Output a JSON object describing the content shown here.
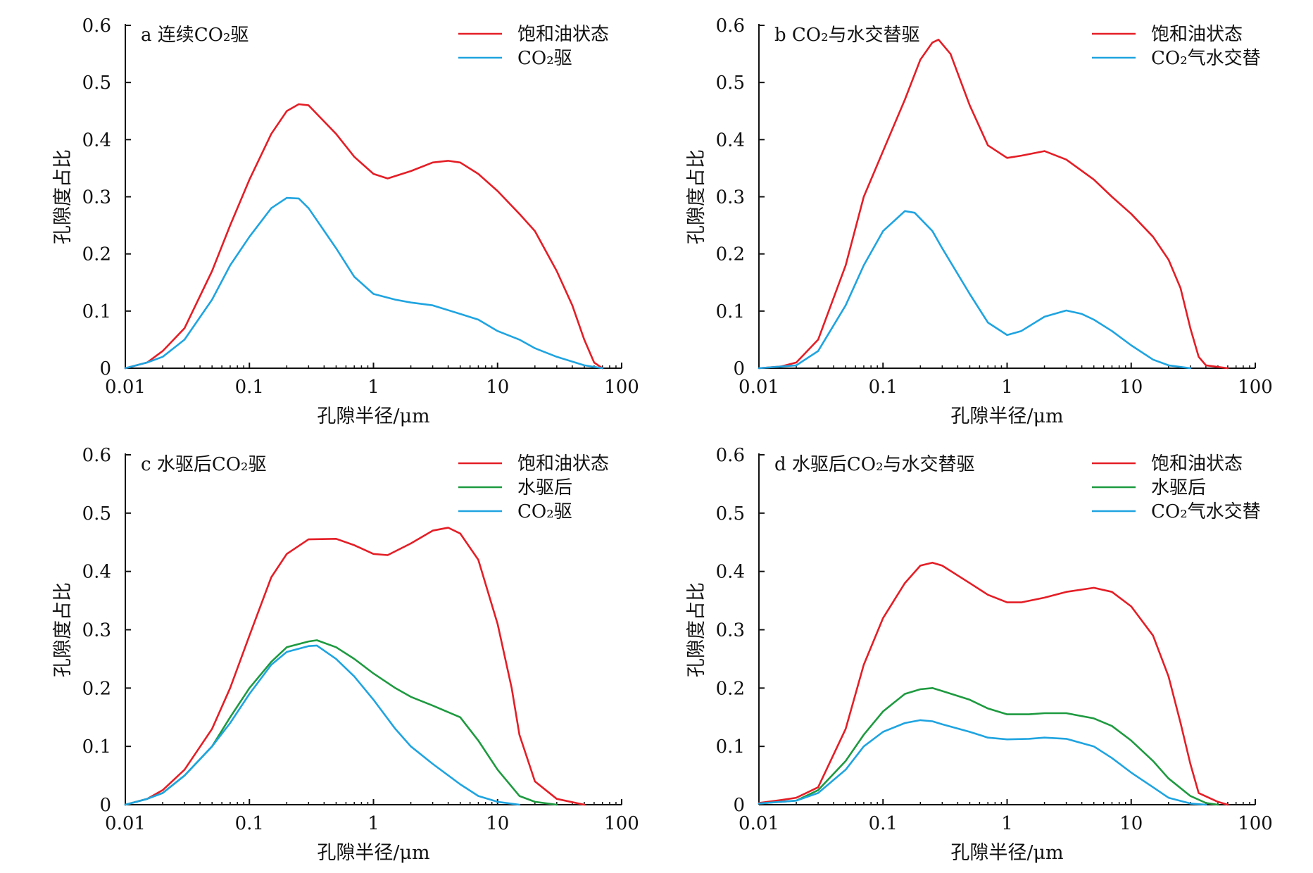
{
  "chart_data": [
    {
      "panel_label": "a 连续CO₂驱",
      "type": "line",
      "xscale": "log",
      "xlim": [
        0.01,
        100
      ],
      "ylim": [
        0,
        0.6
      ],
      "xticks": [
        "0.01",
        "0.1",
        "1",
        "10",
        "100"
      ],
      "yticks": [
        "0",
        "0.1",
        "0.2",
        "0.3",
        "0.4",
        "0.5",
        "0.6"
      ],
      "xlabel": "孔隙半径/μm",
      "ylabel": "孔隙度占比",
      "grid": false,
      "legend_position": "top-right",
      "series": [
        {
          "name": "饱和油状态",
          "color": "#e41e26",
          "points": [
            [
              0.01,
              0
            ],
            [
              0.015,
              0.01
            ],
            [
              0.02,
              0.03
            ],
            [
              0.03,
              0.07
            ],
            [
              0.05,
              0.17
            ],
            [
              0.07,
              0.25
            ],
            [
              0.1,
              0.33
            ],
            [
              0.15,
              0.41
            ],
            [
              0.2,
              0.45
            ],
            [
              0.25,
              0.462
            ],
            [
              0.3,
              0.46
            ],
            [
              0.5,
              0.41
            ],
            [
              0.7,
              0.37
            ],
            [
              1,
              0.34
            ],
            [
              1.3,
              0.332
            ],
            [
              2,
              0.345
            ],
            [
              3,
              0.36
            ],
            [
              4,
              0.363
            ],
            [
              5,
              0.36
            ],
            [
              7,
              0.34
            ],
            [
              10,
              0.31
            ],
            [
              15,
              0.27
            ],
            [
              20,
              0.24
            ],
            [
              30,
              0.17
            ],
            [
              40,
              0.11
            ],
            [
              50,
              0.05
            ],
            [
              60,
              0.01
            ],
            [
              70,
              0
            ]
          ]
        },
        {
          "name": "CO₂驱",
          "color": "#1fa4e0",
          "points": [
            [
              0.01,
              0
            ],
            [
              0.015,
              0.01
            ],
            [
              0.02,
              0.02
            ],
            [
              0.03,
              0.05
            ],
            [
              0.05,
              0.12
            ],
            [
              0.07,
              0.18
            ],
            [
              0.1,
              0.23
            ],
            [
              0.15,
              0.28
            ],
            [
              0.2,
              0.298
            ],
            [
              0.25,
              0.297
            ],
            [
              0.3,
              0.28
            ],
            [
              0.5,
              0.21
            ],
            [
              0.7,
              0.16
            ],
            [
              1,
              0.13
            ],
            [
              1.5,
              0.12
            ],
            [
              2,
              0.115
            ],
            [
              3,
              0.11
            ],
            [
              5,
              0.095
            ],
            [
              7,
              0.085
            ],
            [
              10,
              0.065
            ],
            [
              15,
              0.05
            ],
            [
              20,
              0.035
            ],
            [
              30,
              0.02
            ],
            [
              50,
              0.005
            ],
            [
              70,
              0
            ]
          ]
        }
      ]
    },
    {
      "panel_label": "b CO₂与水交替驱",
      "type": "line",
      "xscale": "log",
      "xlim": [
        0.01,
        100
      ],
      "ylim": [
        0,
        0.6
      ],
      "xticks": [
        "0.01",
        "0.1",
        "1",
        "10",
        "100"
      ],
      "yticks": [
        "0",
        "0.1",
        "0.2",
        "0.3",
        "0.4",
        "0.5",
        "0.6"
      ],
      "xlabel": "孔隙半径/μm",
      "ylabel": "孔隙度占比",
      "grid": false,
      "legend_position": "top-right",
      "series": [
        {
          "name": "饱和油状态",
          "color": "#e41e26",
          "points": [
            [
              0.01,
              0
            ],
            [
              0.015,
              0.003
            ],
            [
              0.02,
              0.01
            ],
            [
              0.03,
              0.05
            ],
            [
              0.05,
              0.18
            ],
            [
              0.07,
              0.3
            ],
            [
              0.1,
              0.38
            ],
            [
              0.15,
              0.47
            ],
            [
              0.2,
              0.54
            ],
            [
              0.25,
              0.57
            ],
            [
              0.28,
              0.575
            ],
            [
              0.35,
              0.55
            ],
            [
              0.5,
              0.46
            ],
            [
              0.7,
              0.39
            ],
            [
              1,
              0.368
            ],
            [
              1.3,
              0.372
            ],
            [
              2,
              0.38
            ],
            [
              3,
              0.365
            ],
            [
              5,
              0.33
            ],
            [
              7,
              0.3
            ],
            [
              10,
              0.27
            ],
            [
              15,
              0.23
            ],
            [
              20,
              0.19
            ],
            [
              25,
              0.14
            ],
            [
              30,
              0.07
            ],
            [
              35,
              0.02
            ],
            [
              40,
              0.005
            ],
            [
              60,
              0
            ]
          ]
        },
        {
          "name": "CO₂气水交替",
          "color": "#1fa4e0",
          "points": [
            [
              0.01,
              0
            ],
            [
              0.02,
              0.005
            ],
            [
              0.03,
              0.03
            ],
            [
              0.05,
              0.11
            ],
            [
              0.07,
              0.18
            ],
            [
              0.1,
              0.24
            ],
            [
              0.15,
              0.275
            ],
            [
              0.18,
              0.272
            ],
            [
              0.25,
              0.24
            ],
            [
              0.3,
              0.21
            ],
            [
              0.5,
              0.13
            ],
            [
              0.7,
              0.08
            ],
            [
              1,
              0.058
            ],
            [
              1.3,
              0.065
            ],
            [
              2,
              0.09
            ],
            [
              3,
              0.101
            ],
            [
              4,
              0.095
            ],
            [
              5,
              0.085
            ],
            [
              7,
              0.065
            ],
            [
              10,
              0.04
            ],
            [
              15,
              0.015
            ],
            [
              20,
              0.005
            ],
            [
              30,
              0
            ]
          ]
        }
      ]
    },
    {
      "panel_label": "c 水驱后CO₂驱",
      "type": "line",
      "xscale": "log",
      "xlim": [
        0.01,
        100
      ],
      "ylim": [
        0,
        0.6
      ],
      "xticks": [
        "0.01",
        "0.1",
        "1",
        "10",
        "100"
      ],
      "yticks": [
        "0",
        "0.1",
        "0.2",
        "0.3",
        "0.4",
        "0.5",
        "0.6"
      ],
      "xlabel": "孔隙半径/μm",
      "ylabel": "孔隙度占比",
      "grid": false,
      "legend_position": "top-right",
      "series": [
        {
          "name": "饱和油状态",
          "color": "#e41e26",
          "points": [
            [
              0.01,
              0
            ],
            [
              0.015,
              0.01
            ],
            [
              0.02,
              0.025
            ],
            [
              0.03,
              0.06
            ],
            [
              0.05,
              0.13
            ],
            [
              0.07,
              0.2
            ],
            [
              0.1,
              0.29
            ],
            [
              0.15,
              0.39
            ],
            [
              0.2,
              0.43
            ],
            [
              0.3,
              0.455
            ],
            [
              0.5,
              0.456
            ],
            [
              0.7,
              0.445
            ],
            [
              1,
              0.43
            ],
            [
              1.3,
              0.428
            ],
            [
              2,
              0.448
            ],
            [
              3,
              0.47
            ],
            [
              4,
              0.475
            ],
            [
              5,
              0.465
            ],
            [
              7,
              0.42
            ],
            [
              10,
              0.31
            ],
            [
              13,
              0.2
            ],
            [
              15,
              0.12
            ],
            [
              20,
              0.04
            ],
            [
              30,
              0.01
            ],
            [
              50,
              0
            ]
          ]
        },
        {
          "name": "水驱后",
          "color": "#1e9a40",
          "points": [
            [
              0.01,
              0
            ],
            [
              0.015,
              0.01
            ],
            [
              0.02,
              0.02
            ],
            [
              0.03,
              0.05
            ],
            [
              0.05,
              0.1
            ],
            [
              0.07,
              0.15
            ],
            [
              0.1,
              0.2
            ],
            [
              0.15,
              0.245
            ],
            [
              0.2,
              0.27
            ],
            [
              0.3,
              0.28
            ],
            [
              0.35,
              0.282
            ],
            [
              0.5,
              0.27
            ],
            [
              0.7,
              0.25
            ],
            [
              1,
              0.225
            ],
            [
              1.5,
              0.2
            ],
            [
              2,
              0.185
            ],
            [
              3,
              0.17
            ],
            [
              5,
              0.15
            ],
            [
              7,
              0.11
            ],
            [
              10,
              0.06
            ],
            [
              15,
              0.015
            ],
            [
              20,
              0.005
            ],
            [
              30,
              0
            ]
          ]
        },
        {
          "name": "CO₂驱",
          "color": "#1fa4e0",
          "points": [
            [
              0.01,
              0
            ],
            [
              0.015,
              0.01
            ],
            [
              0.02,
              0.02
            ],
            [
              0.03,
              0.05
            ],
            [
              0.05,
              0.1
            ],
            [
              0.07,
              0.14
            ],
            [
              0.1,
              0.19
            ],
            [
              0.15,
              0.24
            ],
            [
              0.2,
              0.262
            ],
            [
              0.3,
              0.272
            ],
            [
              0.35,
              0.273
            ],
            [
              0.5,
              0.25
            ],
            [
              0.7,
              0.22
            ],
            [
              1,
              0.18
            ],
            [
              1.5,
              0.13
            ],
            [
              2,
              0.1
            ],
            [
              3,
              0.07
            ],
            [
              5,
              0.035
            ],
            [
              7,
              0.015
            ],
            [
              10,
              0.005
            ],
            [
              15,
              0
            ]
          ]
        }
      ]
    },
    {
      "panel_label": "d 水驱后CO₂与水交替驱",
      "type": "line",
      "xscale": "log",
      "xlim": [
        0.01,
        100
      ],
      "ylim": [
        0,
        0.6
      ],
      "xticks": [
        "0.01",
        "0.1",
        "1",
        "10",
        "100"
      ],
      "yticks": [
        "0",
        "0.1",
        "0.2",
        "0.3",
        "0.4",
        "0.5",
        "0.6"
      ],
      "xlabel": "孔隙半径/μm",
      "ylabel": "孔隙度占比",
      "grid": false,
      "legend_position": "top-right",
      "series": [
        {
          "name": "饱和油状态",
          "color": "#e41e26",
          "points": [
            [
              0.01,
              0.003
            ],
            [
              0.015,
              0.008
            ],
            [
              0.02,
              0.012
            ],
            [
              0.03,
              0.03
            ],
            [
              0.05,
              0.13
            ],
            [
              0.07,
              0.24
            ],
            [
              0.1,
              0.32
            ],
            [
              0.15,
              0.38
            ],
            [
              0.2,
              0.41
            ],
            [
              0.25,
              0.415
            ],
            [
              0.3,
              0.41
            ],
            [
              0.5,
              0.38
            ],
            [
              0.7,
              0.36
            ],
            [
              1,
              0.347
            ],
            [
              1.3,
              0.347
            ],
            [
              2,
              0.355
            ],
            [
              3,
              0.365
            ],
            [
              5,
              0.372
            ],
            [
              7,
              0.365
            ],
            [
              10,
              0.34
            ],
            [
              15,
              0.29
            ],
            [
              20,
              0.22
            ],
            [
              25,
              0.14
            ],
            [
              30,
              0.07
            ],
            [
              35,
              0.02
            ],
            [
              50,
              0.005
            ],
            [
              60,
              0
            ]
          ]
        },
        {
          "name": "水驱后",
          "color": "#1e9a40",
          "points": [
            [
              0.01,
              0.002
            ],
            [
              0.02,
              0.007
            ],
            [
              0.03,
              0.025
            ],
            [
              0.05,
              0.075
            ],
            [
              0.07,
              0.12
            ],
            [
              0.1,
              0.16
            ],
            [
              0.15,
              0.19
            ],
            [
              0.2,
              0.198
            ],
            [
              0.25,
              0.2
            ],
            [
              0.3,
              0.195
            ],
            [
              0.5,
              0.18
            ],
            [
              0.7,
              0.165
            ],
            [
              1,
              0.155
            ],
            [
              1.5,
              0.155
            ],
            [
              2,
              0.157
            ],
            [
              3,
              0.157
            ],
            [
              5,
              0.148
            ],
            [
              7,
              0.135
            ],
            [
              10,
              0.11
            ],
            [
              15,
              0.075
            ],
            [
              20,
              0.045
            ],
            [
              30,
              0.015
            ],
            [
              40,
              0.003
            ],
            [
              50,
              0
            ]
          ]
        },
        {
          "name": "CO₂气水交替",
          "color": "#1fa4e0",
          "points": [
            [
              0.01,
              0.002
            ],
            [
              0.02,
              0.007
            ],
            [
              0.03,
              0.02
            ],
            [
              0.05,
              0.06
            ],
            [
              0.07,
              0.1
            ],
            [
              0.1,
              0.125
            ],
            [
              0.15,
              0.14
            ],
            [
              0.2,
              0.145
            ],
            [
              0.25,
              0.143
            ],
            [
              0.3,
              0.138
            ],
            [
              0.5,
              0.125
            ],
            [
              0.7,
              0.115
            ],
            [
              1,
              0.112
            ],
            [
              1.5,
              0.113
            ],
            [
              2,
              0.115
            ],
            [
              3,
              0.113
            ],
            [
              5,
              0.1
            ],
            [
              7,
              0.08
            ],
            [
              10,
              0.055
            ],
            [
              15,
              0.03
            ],
            [
              20,
              0.012
            ],
            [
              30,
              0.002
            ],
            [
              40,
              0
            ]
          ]
        }
      ]
    }
  ]
}
